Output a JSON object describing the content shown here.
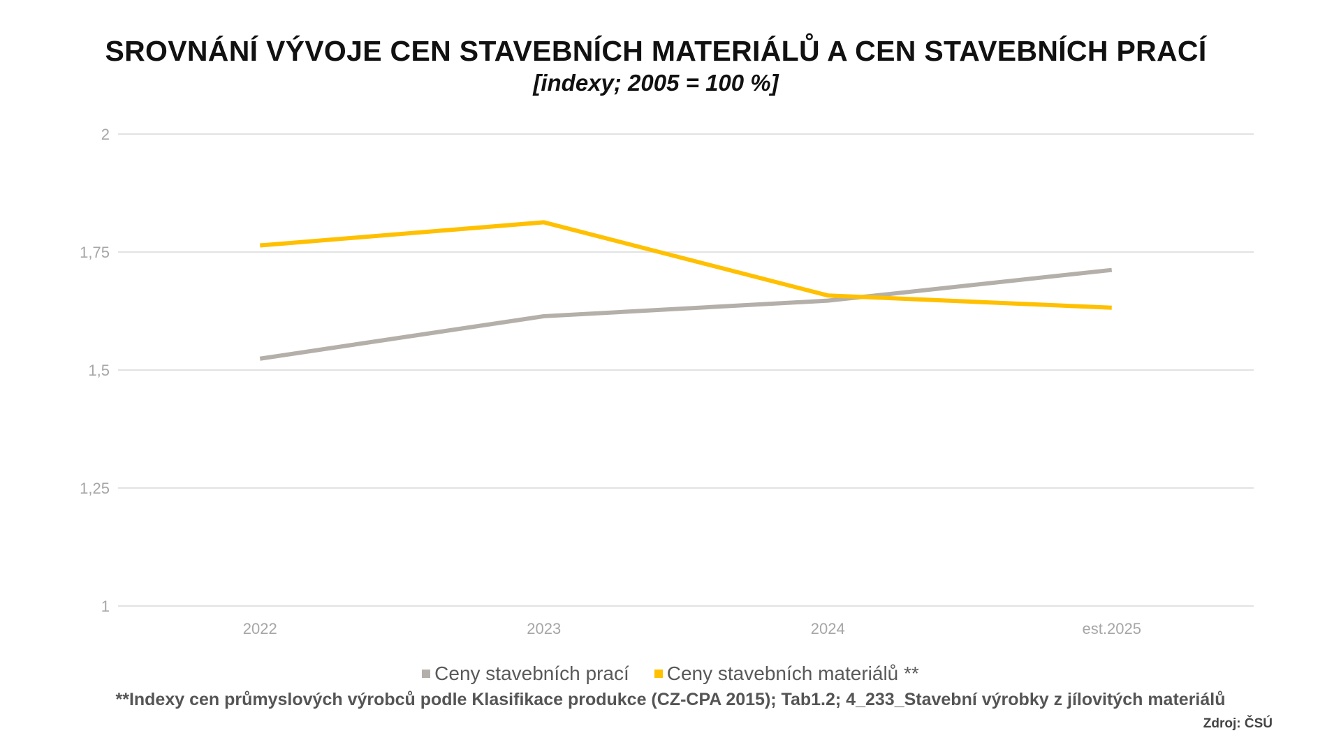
{
  "chart_data": {
    "type": "line",
    "title": "SROVNÁNÍ VÝVOJE CEN STAVEBNÍCH MATERIÁLŮ A CEN STAVEBNÍCH PRACÍ",
    "subtitle": "[indexy; 2005 = 100 %]",
    "categories": [
      "2022",
      "2023",
      "2024",
      "est.2025"
    ],
    "ylim": [
      1,
      2
    ],
    "yticks": [
      1,
      1.25,
      1.5,
      1.75,
      2
    ],
    "ytick_labels": [
      "1",
      "1,25",
      "1,5",
      "1,75",
      "2"
    ],
    "grid": true,
    "legend_placement": "bottom",
    "series": [
      {
        "name": "Ceny stavebních prací",
        "color": "#b4afa9",
        "values": [
          1.524,
          1.614,
          1.647,
          1.712
        ]
      },
      {
        "name": "Ceny stavebních materiálů **",
        "color": "#ffc000",
        "values": [
          1.764,
          1.813,
          1.658,
          1.632
        ]
      }
    ]
  },
  "footnote": "**Indexy cen průmyslových výrobců podle Klasifikace produkce (CZ-CPA 2015); Tab1.2; 4_233_Stavební výrobky z jílovitých materiálů",
  "source": "Zdroj: ČSÚ"
}
